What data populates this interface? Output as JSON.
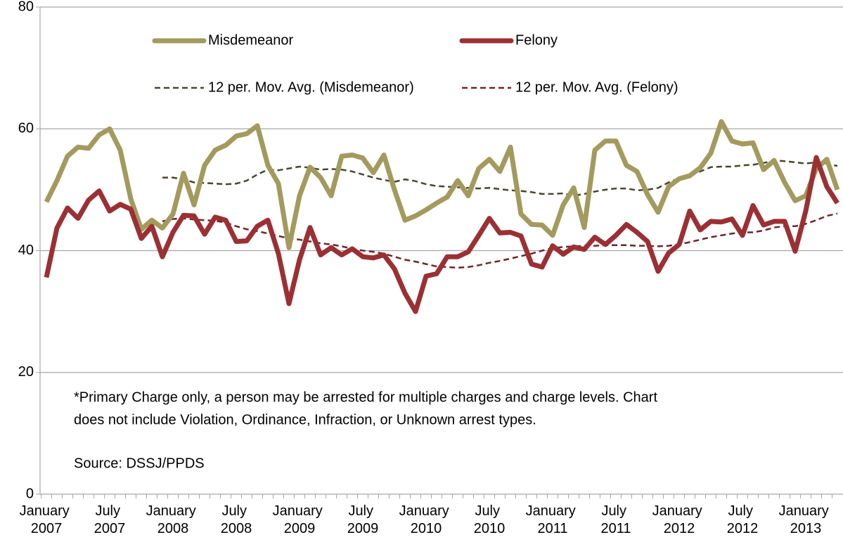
{
  "chart_data": {
    "type": "line",
    "categories": [
      "January 2007",
      null,
      null,
      null,
      null,
      null,
      "July 2007",
      null,
      null,
      null,
      null,
      null,
      "January 2008",
      null,
      null,
      null,
      null,
      null,
      "July 2008",
      null,
      null,
      null,
      null,
      null,
      "January 2009",
      null,
      null,
      null,
      null,
      null,
      "July 2009",
      null,
      null,
      null,
      null,
      null,
      "January 2010",
      null,
      null,
      null,
      null,
      null,
      "July 2010",
      null,
      null,
      null,
      null,
      null,
      "January 2011",
      null,
      null,
      null,
      null,
      null,
      "July 2011",
      null,
      null,
      null,
      null,
      null,
      "January 2012",
      null,
      null,
      null,
      null,
      null,
      "July 2012",
      null,
      null,
      null,
      null,
      null,
      "January 2013",
      null,
      null,
      null
    ],
    "series": [
      {
        "name": "Misdemeanor",
        "color": "#a39a5e",
        "style": "solid",
        "values": [
          48,
          51.5,
          55.5,
          57,
          56.8,
          59,
          60,
          56.5,
          48.5,
          43.5,
          45,
          43.7,
          46,
          52.7,
          47.5,
          54,
          56.5,
          57.3,
          58.8,
          59.2,
          60.5,
          54,
          51,
          40.5,
          49,
          53.7,
          52,
          49,
          55.5,
          55.7,
          55.2,
          52.8,
          55.7,
          50,
          45,
          45.7,
          46.7,
          47.8,
          48.8,
          51.5,
          49,
          53.5,
          55,
          53,
          57,
          46,
          44.3,
          44.2,
          42.5,
          47.5,
          50.3,
          43.8,
          56.5,
          58,
          58,
          54,
          53,
          49.2,
          46.3,
          50.5,
          51.8,
          52.3,
          53.6,
          56,
          61.2,
          58,
          57.5,
          57.7,
          53.3,
          54.8,
          51.2,
          48.2,
          49,
          53.5,
          55,
          50
        ]
      },
      {
        "name": "Felony",
        "color": "#9b3034",
        "style": "solid",
        "values": [
          35.6,
          43.7,
          47,
          45.3,
          48.3,
          49.8,
          46.5,
          47.6,
          46.8,
          42,
          44,
          39,
          43,
          45.8,
          45.7,
          42.7,
          45.5,
          45,
          41.5,
          41.6,
          44,
          45,
          39.5,
          31.3,
          38.5,
          43.8,
          39.3,
          40.5,
          39.3,
          40.3,
          39,
          38.8,
          39.3,
          37,
          33,
          30,
          35.8,
          36.2,
          39,
          39,
          39.8,
          42.5,
          45.3,
          42.9,
          43,
          42.4,
          37.8,
          37.3,
          40.8,
          39.4,
          40.6,
          40.2,
          42.2,
          41,
          42.5,
          44.3,
          43,
          41.5,
          36.6,
          39.6,
          41,
          46.5,
          43.4,
          44.8,
          44.7,
          45.2,
          42.5,
          47.4,
          44.2,
          44.8,
          44.8,
          39.9,
          46.5,
          55.3,
          50.5,
          47.8
        ]
      },
      {
        "name": "12 per. Mov. Avg. (Misdemeanor)",
        "color": "#4a4530",
        "style": "dash",
        "values": [
          null,
          null,
          null,
          null,
          null,
          null,
          null,
          null,
          null,
          null,
          null,
          52,
          52,
          51.7,
          51.2,
          51.1,
          51,
          50.9,
          51,
          51.5,
          52.5,
          53.3,
          53.2,
          53.5,
          53.8,
          53.6,
          53.3,
          53.4,
          53.3,
          53,
          52.5,
          52,
          51.6,
          51.3,
          51.7,
          51.4,
          50.9,
          50.6,
          50.5,
          50.4,
          50.3,
          50.2,
          50.3,
          50.1,
          49.9,
          49.8,
          49.6,
          49.3,
          49.3,
          49.4,
          49,
          49.3,
          49.7,
          50,
          50.2,
          50.2,
          49.9,
          50,
          50.3,
          51.2,
          51.9,
          52.3,
          53,
          53.7,
          53.8,
          53.8,
          54,
          54.1,
          54.4,
          54.8,
          54.7,
          54.5,
          54.3,
          54.5,
          54.3,
          53.9
        ]
      },
      {
        "name": "12 per. Mov. Avg. (Felony)",
        "color": "#6e2528",
        "style": "dash",
        "values": [
          null,
          null,
          null,
          null,
          null,
          null,
          null,
          null,
          null,
          null,
          null,
          44.8,
          45.2,
          45.3,
          45.1,
          45,
          44.9,
          44.6,
          44,
          43.5,
          43.2,
          42.8,
          42.4,
          42,
          41.8,
          41.5,
          41.2,
          41,
          40.7,
          40.3,
          40,
          39.8,
          39.5,
          39,
          38.5,
          38.2,
          37.8,
          37.4,
          37.3,
          37.2,
          37.3,
          37.6,
          38,
          38.3,
          38.7,
          39.1,
          39.5,
          40,
          40.4,
          40.6,
          40.7,
          40.8,
          40.8,
          40.9,
          40.9,
          40.9,
          40.8,
          40.8,
          40.7,
          40.8,
          41,
          41.4,
          41.8,
          42.2,
          42.5,
          42.8,
          43,
          43,
          43.3,
          43.8,
          44,
          44,
          44.4,
          45,
          45.7,
          46.1
        ]
      }
    ],
    "ylim": [
      0,
      80
    ],
    "yticks": [
      0,
      20,
      40,
      60,
      80
    ],
    "grid": true,
    "annotations": [
      "*Primary Charge only, a person may be arrested for multiple charges and charge levels.  Chart",
      "does not include Violation, Ordinance, Infraction, or Unknown arrest types."
    ],
    "source": "Source: DSSJ/PPDS"
  }
}
